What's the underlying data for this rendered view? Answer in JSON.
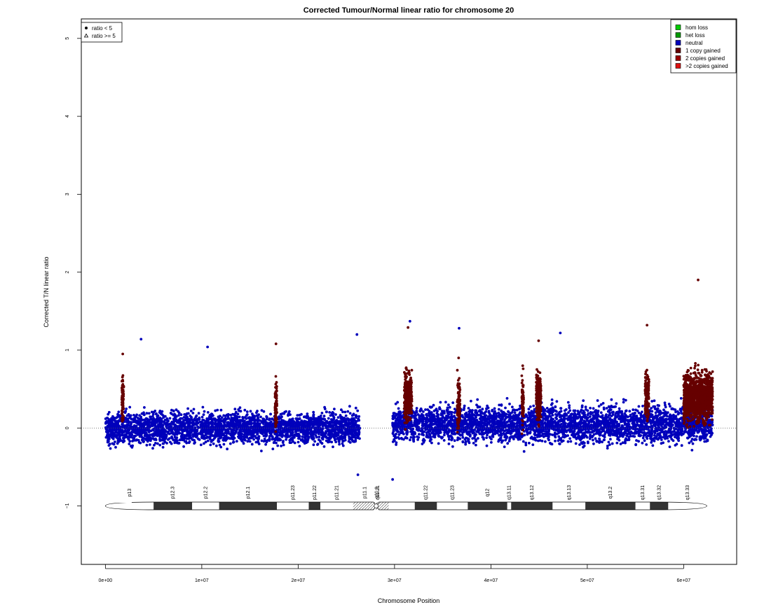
{
  "chart_data": {
    "type": "scatter",
    "title": "Corrected Tumour/Normal linear ratio for chromosome  20",
    "xlabel": "Chromosome Position",
    "ylabel": "Corrected T/N linear ratio",
    "xlim": [
      -2500000,
      65500000
    ],
    "ylim": [
      -1.75,
      5.25
    ],
    "x_ticks": [
      {
        "value": 0,
        "label": "0e+00"
      },
      {
        "value": 10000000,
        "label": "1e+07"
      },
      {
        "value": 20000000,
        "label": "2e+07"
      },
      {
        "value": 30000000,
        "label": "3e+07"
      },
      {
        "value": 40000000,
        "label": "4e+07"
      },
      {
        "value": 50000000,
        "label": "5e+07"
      },
      {
        "value": 60000000,
        "label": "6e+07"
      }
    ],
    "y_ticks": [
      {
        "value": -1,
        "label": "−1"
      },
      {
        "value": 0,
        "label": "0"
      },
      {
        "value": 1,
        "label": "1"
      },
      {
        "value": 2,
        "label": "2"
      },
      {
        "value": 3,
        "label": "3"
      },
      {
        "value": 4,
        "label": "4"
      },
      {
        "value": 5,
        "label": "5"
      }
    ],
    "reference_line": {
      "y": 0,
      "style": "dotted"
    },
    "legend_shape": {
      "position": "top-left",
      "entries": [
        {
          "label": "ratio < 5",
          "marker": "dot"
        },
        {
          "label": "ratio >= 5",
          "marker": "triangle"
        }
      ]
    },
    "legend_status": {
      "position": "top-right",
      "entries": [
        {
          "label": "hom loss",
          "color": "#00CC00"
        },
        {
          "label": "het loss",
          "color": "#009900"
        },
        {
          "label": "neutral",
          "color": "#0000BB"
        },
        {
          "label": "1 copy gained",
          "color": "#660000"
        },
        {
          "label": "2 copies gained",
          "color": "#990000"
        },
        {
          "label": ">2 copies gained",
          "color": "#DD1111"
        }
      ]
    },
    "series": [
      {
        "name": "neutral",
        "color": "#0000BB",
        "regions": [
          {
            "x": [
              0,
              26400000
            ],
            "median": 0.0,
            "spread": 0.35
          },
          {
            "x": [
              29800000,
              63000000
            ],
            "median": 0.05,
            "spread": 0.4
          }
        ],
        "notable_points": [
          {
            "x": 3700000,
            "y": 1.14
          },
          {
            "x": 10600000,
            "y": 1.04
          },
          {
            "x": 26100000,
            "y": 1.2
          },
          {
            "x": 31600000,
            "y": 1.37
          },
          {
            "x": 36700000,
            "y": 1.28
          },
          {
            "x": 47200000,
            "y": 1.22
          },
          {
            "x": 26200000,
            "y": -0.6
          },
          {
            "x": 29800000,
            "y": -0.66
          }
        ]
      },
      {
        "name": "1 copy gained",
        "color": "#660000",
        "regions": [
          {
            "x": [
              1700000,
              1900000
            ],
            "median": 0.35,
            "max": 0.95
          },
          {
            "x": [
              17600000,
              17800000
            ],
            "median": 0.3,
            "max": 1.08
          },
          {
            "x": [
              31000000,
              31800000
            ],
            "median": 0.4,
            "max": 1.29
          },
          {
            "x": [
              36500000,
              36800000
            ],
            "median": 0.3,
            "max": 0.9
          },
          {
            "x": [
              43200000,
              43400000
            ],
            "median": 0.3,
            "max": 0.8
          },
          {
            "x": [
              44700000,
              45200000
            ],
            "median": 0.4,
            "max": 1.12
          },
          {
            "x": [
              56000000,
              56400000
            ],
            "median": 0.4,
            "max": 1.32
          },
          {
            "x": [
              60000000,
              63000000
            ],
            "median": 0.4,
            "max": 1.9
          }
        ]
      }
    ],
    "ideogram": {
      "y": -1,
      "start": 0,
      "end": 62400000,
      "bands": [
        {
          "name": "p13",
          "start": 0,
          "end": 5000000,
          "stain": "gneg"
        },
        {
          "name": "p12.3",
          "start": 5000000,
          "end": 9000000,
          "stain": "gpos"
        },
        {
          "name": "p12.2",
          "start": 9000000,
          "end": 11800000,
          "stain": "gneg"
        },
        {
          "name": "p12.1",
          "start": 11800000,
          "end": 17800000,
          "stain": "gpos"
        },
        {
          "name": "p11.23",
          "start": 17800000,
          "end": 21100000,
          "stain": "gneg"
        },
        {
          "name": "p11.22",
          "start": 21100000,
          "end": 22300000,
          "stain": "gpos"
        },
        {
          "name": "p11.21",
          "start": 22300000,
          "end": 25700000,
          "stain": "gneg"
        },
        {
          "name": "p11.1",
          "start": 25700000,
          "end": 28100000,
          "stain": "acen"
        },
        {
          "name": "q11.1",
          "start": 28100000,
          "end": 28200000,
          "stain": "acen"
        },
        {
          "name": "q11.21",
          "start": 28200000,
          "end": 28300000,
          "stain": "acen"
        },
        {
          "name": "q11.1",
          "start": 28300000,
          "end": 29400000,
          "stain": "acen"
        },
        {
          "name": "q11.21",
          "start": 29400000,
          "end": 32100000,
          "stain": "gneg"
        },
        {
          "name": "q11.22",
          "start": 32100000,
          "end": 34400000,
          "stain": "gpos"
        },
        {
          "name": "q11.23",
          "start": 34400000,
          "end": 37600000,
          "stain": "gneg"
        },
        {
          "name": "q12",
          "start": 37600000,
          "end": 41700000,
          "stain": "gpos"
        },
        {
          "name": "q13.11",
          "start": 41700000,
          "end": 42100000,
          "stain": "gneg"
        },
        {
          "name": "q13.12",
          "start": 42100000,
          "end": 46400000,
          "stain": "gpos"
        },
        {
          "name": "q13.13",
          "start": 46400000,
          "end": 49800000,
          "stain": "gneg"
        },
        {
          "name": "q13.2",
          "start": 49800000,
          "end": 55000000,
          "stain": "gpos"
        },
        {
          "name": "q13.31",
          "start": 55000000,
          "end": 56500000,
          "stain": "gneg"
        },
        {
          "name": "q13.32",
          "start": 56500000,
          "end": 58400000,
          "stain": "gpos"
        },
        {
          "name": "q13.33",
          "start": 58400000,
          "end": 62400000,
          "stain": "gneg"
        }
      ],
      "label_bands": [
        "p13",
        "p12.3",
        "p12.2",
        "p12.1",
        "p11.23",
        "p11.22",
        "p11.21",
        "p11.1",
        "q11.1",
        "q11.21",
        "q11.22",
        "q11.23",
        "q12",
        "q13.11",
        "q13.12",
        "q13.13",
        "q13.2",
        "q13.31",
        "q13.32",
        "q13.33"
      ]
    }
  }
}
